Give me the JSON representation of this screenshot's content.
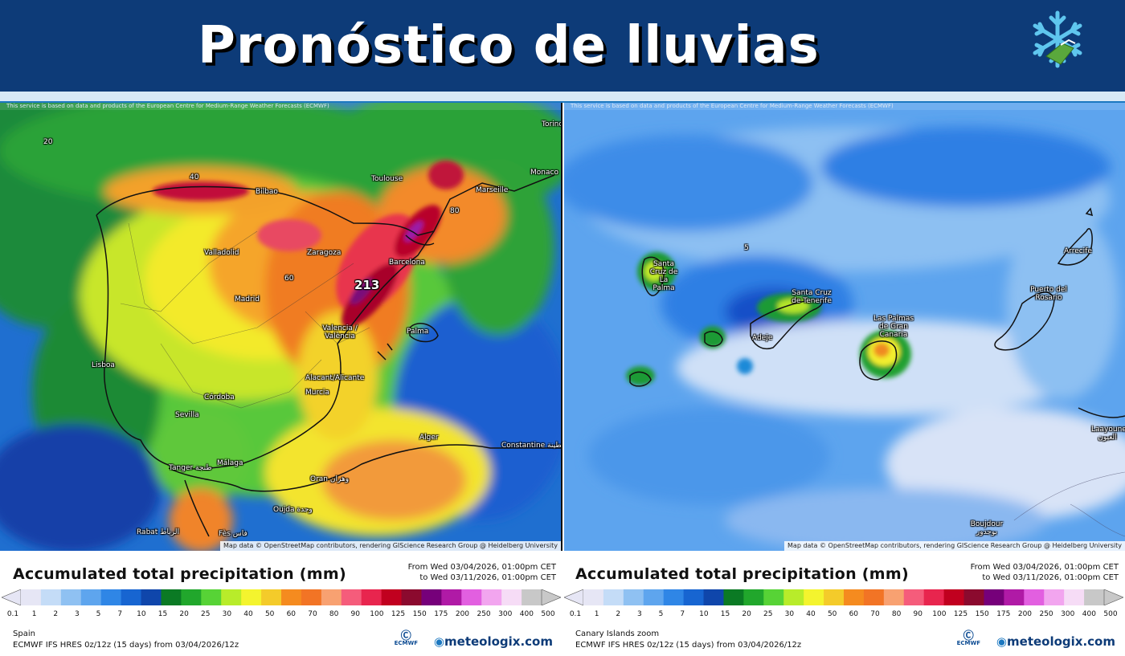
{
  "header": {
    "title": "Pronóstico de lluvias",
    "logo_icon": "snowflake-logo-icon",
    "bg_color": "#0d3b78"
  },
  "attribution_top": "This service is based on data and products of the European Centre for Medium-Range Weather Forecasts (ECMWF)",
  "attribution_bottom": "Map data © OpenStreetMap contributors, rendering GIScience Research Group @ Heidelberg University",
  "panels": [
    {
      "region": "Spain",
      "legend_title": "Accumulated total precipitation (mm)",
      "from_text": "From Wed 03/04/2026, 01:00pm CET",
      "to_text": "to Wed 03/11/2026, 01:00pm CET",
      "model_text": "ECMWF IFS HRES 0z/12z (15 days) from 03/04/2026/12z",
      "brand": "meteologix.com",
      "ecmwf_label": "ECMWF",
      "cities": [
        "Bilbao",
        "Toulouse",
        "Marseille",
        "Monaco",
        "Torino",
        "Valladolid",
        "Zaragoza",
        "Barcelona",
        "Madrid",
        "Valencia / València",
        "Palma",
        "Lisboa",
        "Alacant/Alicante",
        "Murcia",
        "Córdoba",
        "Sevilla",
        "Málaga",
        "Tanger طنجة",
        "Oran وهران",
        "Alger",
        "Constantine قسنطينة",
        "Oujda وجدة",
        "Rabat الرباط",
        "Fès فاس"
      ],
      "peak_label": "213",
      "contour_labels": [
        "20",
        "40",
        "60",
        "80"
      ]
    },
    {
      "region": "Canary Islands zoom",
      "legend_title": "Accumulated total precipitation (mm)",
      "from_text": "From Wed 03/04/2026, 01:00pm CET",
      "to_text": "to Wed 03/11/2026, 01:00pm CET",
      "model_text": "ECMWF IFS HRES 0z/12z (15 days) from 03/04/2026/12z",
      "brand": "meteologix.com",
      "ecmwf_label": "ECMWF",
      "cities": [
        "Santa Cruz de La Palma",
        "Santa Cruz de Tenerife",
        "Adeje",
        "Las Palmas de Gran Canaria",
        "Arrecife",
        "Puerto del Rosario",
        "Laayoune العيون",
        "Boujdour بوجدور"
      ],
      "contour_labels": [
        "5"
      ]
    }
  ],
  "legend_scale": {
    "ticks": [
      "0.1",
      "1",
      "2",
      "3",
      "5",
      "7",
      "10",
      "15",
      "20",
      "25",
      "30",
      "40",
      "50",
      "60",
      "70",
      "80",
      "90",
      "100",
      "125",
      "150",
      "175",
      "200",
      "250",
      "300",
      "400",
      "500"
    ],
    "colors": [
      "#e6e6f5",
      "#c4dcf7",
      "#8fc1f2",
      "#5ea5ee",
      "#2f86e6",
      "#1765d1",
      "#0f46ab",
      "#0b7a24",
      "#21a72c",
      "#57d336",
      "#b8ec2a",
      "#f4f42e",
      "#f4cb2a",
      "#f58b1f",
      "#f27425",
      "#f8a171",
      "#f55c7b",
      "#e8254e",
      "#c1001f",
      "#8b0a2e",
      "#76007a",
      "#b01aa6",
      "#e25fe0",
      "#f2a5ef",
      "#f6dcf6",
      "#c8c8c8"
    ]
  }
}
